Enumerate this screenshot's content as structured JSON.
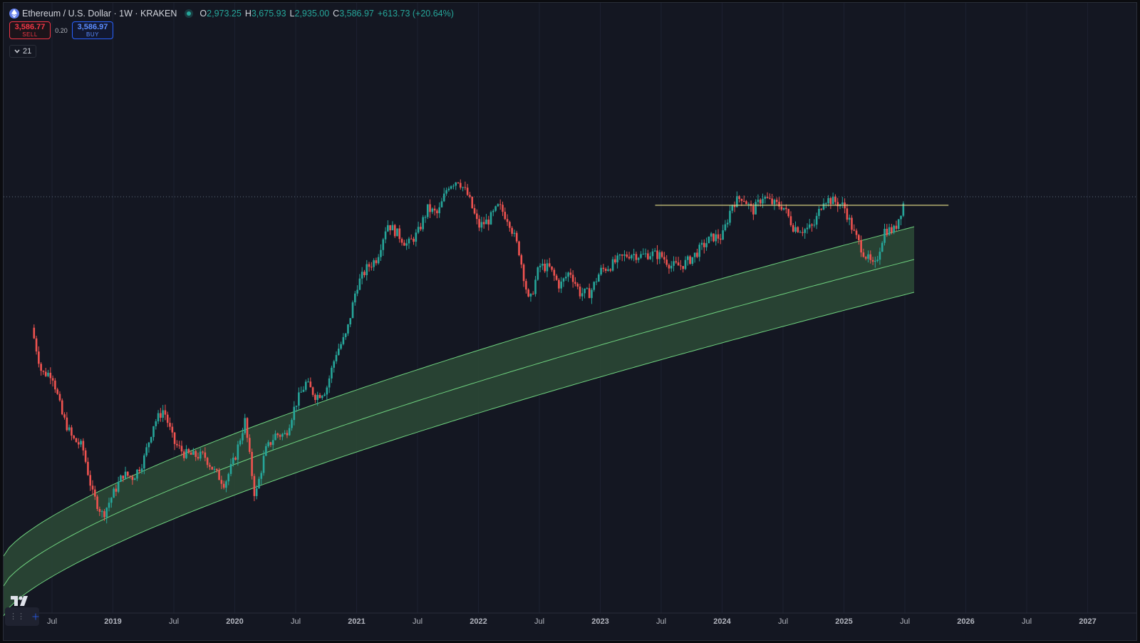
{
  "header": {
    "symbol": "Ethereum / U.S. Dollar · 1W · KRAKEN",
    "ohlc": {
      "o_label": "O",
      "o_value": "2,973.25",
      "h_label": "H",
      "h_value": "3,675.93",
      "l_label": "L",
      "l_value": "2,935.00",
      "c_label": "C",
      "c_value": "3,586.97",
      "change": "+613.73 (+20.64%)"
    }
  },
  "trade": {
    "sell_price": "3,586.77",
    "sell_label": "SELL",
    "spread": "0.20",
    "buy_price": "3,586.97",
    "buy_label": "BUY"
  },
  "indicators": {
    "toggle_label": "21"
  },
  "icons": {
    "symbol_icon": "ethereum-icon",
    "status_dot": "market-open-dot",
    "collapse_icon": "chevron-down-icon",
    "logo": "tradingview-logo",
    "grip": "drag-handle-icon",
    "crosshair": "crosshair-icon"
  },
  "colors": {
    "background": "#141722",
    "up": "#26a69a",
    "down": "#ef5350",
    "band_fill": "#2b4a36",
    "band_line": "#6fd27f",
    "resistance_line": "#e8e08a"
  },
  "chart_data": {
    "type": "candlestick",
    "interval": "1W",
    "x_range": [
      "2018-05",
      "2027-03"
    ],
    "x_tick_labels": [
      "Jul",
      "2019",
      "Jul",
      "2020",
      "Jul",
      "2021",
      "Jul",
      "2022",
      "Jul",
      "2023",
      "Jul",
      "2024",
      "Jul",
      "2025",
      "Jul",
      "2026",
      "Jul",
      "2027"
    ],
    "price_path": [
      [
        "2018-05",
        800
      ],
      [
        "2018-06",
        470
      ],
      [
        "2018-07",
        470
      ],
      [
        "2018-08",
        290
      ],
      [
        "2018-09",
        220
      ],
      [
        "2018-10",
        200
      ],
      [
        "2018-11",
        115
      ],
      [
        "2018-12",
        90
      ],
      [
        "2019-01",
        115
      ],
      [
        "2019-02",
        145
      ],
      [
        "2019-03",
        140
      ],
      [
        "2019-04",
        170
      ],
      [
        "2019-05",
        260
      ],
      [
        "2019-06",
        310
      ],
      [
        "2019-07",
        210
      ],
      [
        "2019-08",
        185
      ],
      [
        "2019-09",
        180
      ],
      [
        "2019-10",
        180
      ],
      [
        "2019-11",
        150
      ],
      [
        "2019-12",
        130
      ],
      [
        "2020-01",
        175
      ],
      [
        "2020-02",
        270
      ],
      [
        "2020-03",
        110
      ],
      [
        "2020-04",
        190
      ],
      [
        "2020-05",
        230
      ],
      [
        "2020-06",
        230
      ],
      [
        "2020-07",
        330
      ],
      [
        "2020-08",
        420
      ],
      [
        "2020-09",
        360
      ],
      [
        "2020-10",
        390
      ],
      [
        "2020-11",
        600
      ],
      [
        "2020-12",
        740
      ],
      [
        "2021-01",
        1300
      ],
      [
        "2021-02",
        1600
      ],
      [
        "2021-03",
        1800
      ],
      [
        "2021-04",
        2700
      ],
      [
        "2021-05",
        2400
      ],
      [
        "2021-06",
        2100
      ],
      [
        "2021-07",
        2400
      ],
      [
        "2021-08",
        3200
      ],
      [
        "2021-09",
        3000
      ],
      [
        "2021-10",
        4200
      ],
      [
        "2021-11",
        4500
      ],
      [
        "2021-12",
        3700
      ],
      [
        "2022-01",
        2600
      ],
      [
        "2022-02",
        2800
      ],
      [
        "2022-03",
        3300
      ],
      [
        "2022-04",
        2800
      ],
      [
        "2022-05",
        1950
      ],
      [
        "2022-06",
        1050
      ],
      [
        "2022-07",
        1650
      ],
      [
        "2022-08",
        1600
      ],
      [
        "2022-09",
        1300
      ],
      [
        "2022-10",
        1550
      ],
      [
        "2022-11",
        1200
      ],
      [
        "2022-12",
        1200
      ],
      [
        "2023-01",
        1550
      ],
      [
        "2023-02",
        1650
      ],
      [
        "2023-03",
        1800
      ],
      [
        "2023-04",
        1900
      ],
      [
        "2023-05",
        1850
      ],
      [
        "2023-06",
        1900
      ],
      [
        "2023-07",
        1850
      ],
      [
        "2023-08",
        1650
      ],
      [
        "2023-09",
        1650
      ],
      [
        "2023-10",
        1800
      ],
      [
        "2023-11",
        2050
      ],
      [
        "2023-12",
        2300
      ],
      [
        "2024-01",
        2300
      ],
      [
        "2024-02",
        3400
      ],
      [
        "2024-03",
        3700
      ],
      [
        "2024-04",
        3100
      ],
      [
        "2024-05",
        3700
      ],
      [
        "2024-06",
        3400
      ],
      [
        "2024-07",
        3300
      ],
      [
        "2024-08",
        2600
      ],
      [
        "2024-09",
        2500
      ],
      [
        "2024-10",
        2600
      ],
      [
        "2024-11",
        3600
      ],
      [
        "2024-12",
        3500
      ],
      [
        "2025-01",
        3300
      ],
      [
        "2025-02",
        2400
      ],
      [
        "2025-03",
        1900
      ],
      [
        "2025-04",
        1600
      ],
      [
        "2025-05",
        2500
      ],
      [
        "2025-06",
        2500
      ],
      [
        "2025-07",
        3587
      ]
    ],
    "overlays": [
      {
        "kind": "regression-band",
        "from": "2018-05",
        "to": "2025-07"
      },
      {
        "kind": "horizontal-resistance",
        "price": 4000,
        "from": "2023-05",
        "to": "2025-12"
      },
      {
        "kind": "last-price-line",
        "price": 3587
      }
    ]
  }
}
